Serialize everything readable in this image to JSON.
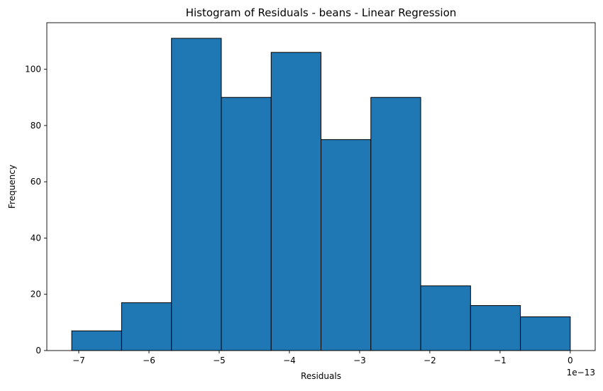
{
  "chart_data": {
    "type": "bar",
    "title": "Histogram of Residuals - beans  - Linear Regression",
    "xlabel": "Residuals",
    "ylabel": "Frequency",
    "offset_text": "1e−13",
    "bin_edges": [
      -7.1,
      -6.39,
      -5.68,
      -4.97,
      -4.26,
      -3.55,
      -2.84,
      -2.13,
      -1.42,
      -0.71,
      0.0
    ],
    "values": [
      7,
      17,
      111,
      90,
      106,
      75,
      90,
      23,
      16,
      12
    ],
    "xlim": [
      -7.455,
      0.355
    ],
    "ylim": [
      0,
      116.55
    ],
    "x_ticks": [
      -7,
      -6,
      -5,
      -4,
      -3,
      -2,
      -1,
      0
    ],
    "x_tick_labels": [
      "−7",
      "−6",
      "−5",
      "−4",
      "−3",
      "−2",
      "−1",
      "0"
    ],
    "y_ticks": [
      0,
      20,
      40,
      60,
      80,
      100
    ],
    "y_tick_labels": [
      "0",
      "20",
      "40",
      "60",
      "80",
      "100"
    ],
    "bar_color": "#1f77b4",
    "edge_color": "#000000",
    "grid": false,
    "legend": "none"
  }
}
